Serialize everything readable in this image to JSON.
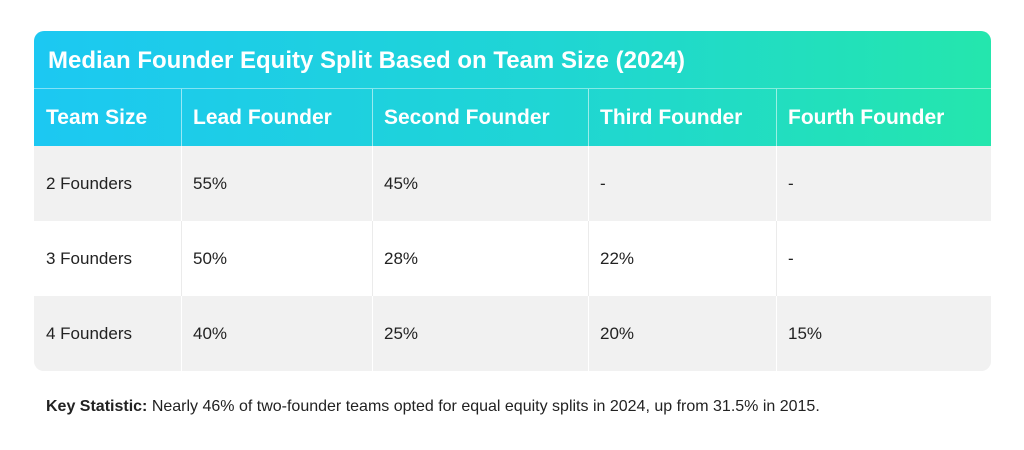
{
  "table": {
    "title": "Median Founder Equity Split Based on Team Size (2024)",
    "headers": [
      "Team Size",
      "Lead Founder",
      "Second Founder",
      "Third Founder",
      "Fourth Founder"
    ],
    "rows": [
      [
        "2 Founders",
        "55%",
        "45%",
        "-",
        "-"
      ],
      [
        "3 Founders",
        "50%",
        "28%",
        "22%",
        "-"
      ],
      [
        "4 Founders",
        "40%",
        "25%",
        "20%",
        "15%"
      ]
    ]
  },
  "footnote": {
    "label": "Key Statistic:",
    "text": " Nearly 46% of two-founder teams opted for equal equity splits in 2024, up from 31.5% in 2015."
  },
  "colors": {
    "header_gradient_start": "#1cc8f2",
    "header_gradient_end": "#24e6ad",
    "row_shaded": "#f1f1f1",
    "row_plain": "#ffffff",
    "text": "#222222"
  }
}
